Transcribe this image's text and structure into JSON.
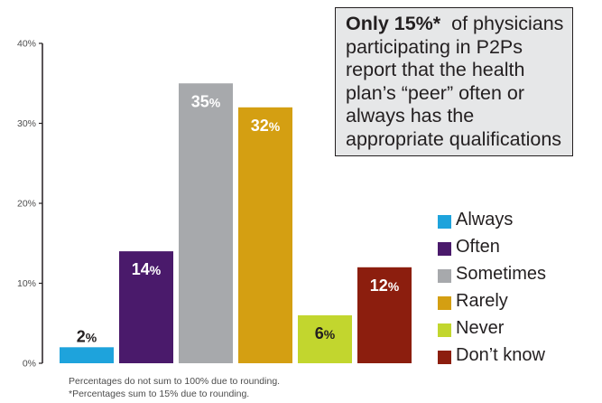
{
  "callout": {
    "bold_text": "Only 15%*",
    "text": "of physicians participating in P2Ps report that the health plan’s “peer” often or always has the appropriate qualifications"
  },
  "footnotes": [
    "Percentages do not sum to 100% due to rounding.",
    "*Percentages sum to 15% due to rounding."
  ],
  "chart_data": {
    "type": "bar",
    "categories": [
      "Always",
      "Often",
      "Sometimes",
      "Rarely",
      "Never",
      "Don’t know"
    ],
    "values": [
      2,
      14,
      35,
      32,
      6,
      12
    ],
    "value_labels": [
      "2%",
      "14%",
      "35%",
      "32%",
      "6%",
      "12%"
    ],
    "colors": [
      "#1ea3dc",
      "#4a1a6b",
      "#a7a9ac",
      "#d49f12",
      "#c2d62e",
      "#8c1e0e"
    ],
    "label_colors": [
      "#231f20",
      "#ffffff",
      "#ffffff",
      "#ffffff",
      "#231f20",
      "#ffffff"
    ],
    "ylim": [
      0,
      40
    ],
    "yticks": [
      0,
      10,
      20,
      30,
      40
    ],
    "ytick_labels": [
      "0%",
      "10%",
      "20%",
      "30%",
      "40%"
    ],
    "legend": {
      "position": "right",
      "entries": [
        "Always",
        "Often",
        "Sometimes",
        "Rarely",
        "Never",
        "Don’t know"
      ]
    }
  }
}
